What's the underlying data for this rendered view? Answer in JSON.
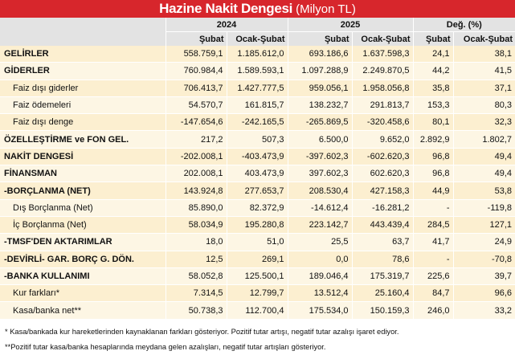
{
  "header": {
    "title": "Hazine Nakit Dengesi",
    "unit": "(Milyon TL)"
  },
  "table": {
    "groups": [
      "2024",
      "2025",
      "Değ. (%)"
    ],
    "columns": [
      "Şubat",
      "Ocak-Şubat",
      "Şubat",
      "Ocak-Şubat",
      "Şubat",
      "Ocak-Şubat"
    ],
    "rows": [
      {
        "label": "GELİRLER",
        "values": [
          "558.759,1",
          "1.185.612,0",
          "693.186,6",
          "1.637.598,3",
          "24,1",
          "38,1"
        ]
      },
      {
        "label": "GİDERLER",
        "values": [
          "760.984,4",
          "1.589.593,1",
          "1.097.288,9",
          "2.249.870,5",
          "44,2",
          "41,5"
        ]
      },
      {
        "label": "Faiz dışı giderler",
        "values": [
          "706.413,7",
          "1.427.777,5",
          "959.056,1",
          "1.958.056,8",
          "35,8",
          "37,1"
        ]
      },
      {
        "label": "Faiz ödemeleri",
        "values": [
          "54.570,7",
          "161.815,7",
          "138.232,7",
          "291.813,7",
          "153,3",
          "80,3"
        ]
      },
      {
        "label": "Faiz dışı denge",
        "values": [
          "-147.654,6",
          "-242.165,5",
          "-265.869,5",
          "-320.458,6",
          "80,1",
          "32,3"
        ]
      },
      {
        "label": "ÖZELLEŞTİRME ve FON GEL.",
        "values": [
          "217,2",
          "507,3",
          "6.500,0",
          "9.652,0",
          "2.892,9",
          "1.802,7"
        ]
      },
      {
        "label": "NAKİT DENGESİ",
        "values": [
          "-202.008,1",
          "-403.473,9",
          "-397.602,3",
          "-602.620,3",
          "96,8",
          "49,4"
        ]
      },
      {
        "label": "FİNANSMAN",
        "values": [
          "202.008,1",
          "403.473,9",
          "397.602,3",
          "602.620,3",
          "96,8",
          "49,4"
        ]
      },
      {
        "label": "-BORÇLANMA (NET)",
        "values": [
          "143.924,8",
          "277.653,7",
          "208.530,4",
          "427.158,3",
          "44,9",
          "53,8"
        ]
      },
      {
        "label": "Dış Borçlanma (Net)",
        "values": [
          "85.890,0",
          "82.372,9",
          "-14.612,4",
          "-16.281,2",
          "-",
          "-119,8"
        ]
      },
      {
        "label": "İç Borçlanma (Net)",
        "values": [
          "58.034,9",
          "195.280,8",
          "223.142,7",
          "443.439,4",
          "284,5",
          "127,1"
        ]
      },
      {
        "label": "-TMSF'DEN AKTARIMLAR",
        "values": [
          "18,0",
          "51,0",
          "25,5",
          "63,7",
          "41,7",
          "24,9"
        ]
      },
      {
        "label": "-DEVİRLİ- GAR. BORÇ G. DÖN.",
        "values": [
          "12,5",
          "269,1",
          "0,0",
          "78,6",
          "-",
          "-70,8"
        ]
      },
      {
        "label": "-BANKA KULLANIMI",
        "values": [
          "58.052,8",
          "125.500,1",
          "189.046,4",
          "175.319,7",
          "225,6",
          "39,7"
        ]
      },
      {
        "label": "Kur farkları*",
        "values": [
          "7.314,5",
          "12.799,7",
          "13.512,4",
          "25.160,4",
          "84,7",
          "96,6"
        ]
      },
      {
        "label": "Kasa/banka net**",
        "values": [
          "50.738,3",
          "112.700,4",
          "175.534,0",
          "150.159,3",
          "246,0",
          "33,2"
        ]
      }
    ]
  },
  "footnotes": [
    "* Kasa/bankada kur hareketlerinden kaynaklanan farkları gösteriyor. Pozitif tutar artışı, negatif tutar azalışı işaret ediyor.",
    "**Pozitif tutar kasa/banka hesaplarında meydana gelen azalışları, negatif tutar artışları gösteriyor."
  ]
}
